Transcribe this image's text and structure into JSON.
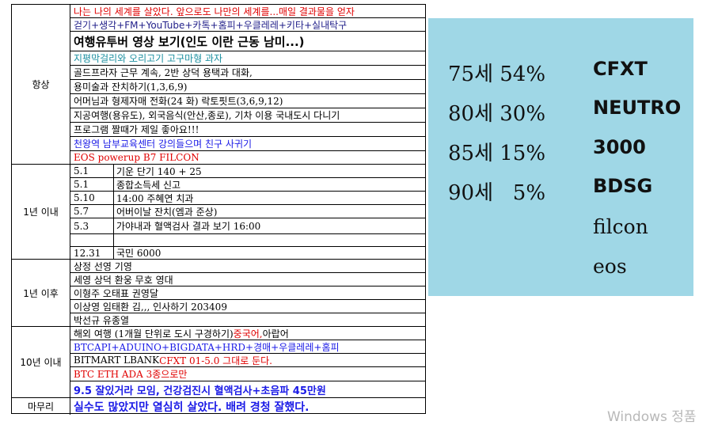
{
  "sections": [
    {
      "label": "항상"
    },
    {
      "label": "1년 이내"
    },
    {
      "label": "1년 이후"
    },
    {
      "label": "10년 이내"
    },
    {
      "label": "마무리"
    }
  ],
  "always": [
    "나는 나의 세계를 살았다. 앞으로도 나만의 세계를...매일 결과물을 얻자",
    "걷기+생각+FM+YouTube+카톡+홈피+우클레레+키타+실내탁구",
    "여행유투버 영상 보기(인도 이란 근동 남미...)",
    "지평막걸리와 오리고기 고구마형 과자",
    "골드프라자 근무 계속, 2반 상덕 용택과 대화,",
    "용미술과 잔치하기(1,3,6,9)",
    "어머님과 형제자매 전화(24 화) 락토핏트(3,6,9,12)",
    "지공여행(용유도), 외국음식(안산,종로), 기차 이용 국내도시 다니기",
    "프로그램 짤때가 제일 좋아요!!!",
    "천왕역 남부교육센터 강의들으며 친구 사귀기",
    "EOS powerup B7 FILCON"
  ],
  "within1": [
    {
      "date": "5.1",
      "text": "기운 단기 140 + 25"
    },
    {
      "date": "5.1",
      "text": "종합소득세 신고"
    },
    {
      "date": "5.10",
      "text": "14:00 주혜연 치과"
    },
    {
      "date": "5.7",
      "text": "어버이날 잔치(엠과 준상)"
    },
    {
      "date": "5.3",
      "text": "가야내과 혈액검사 결과 보기 16:00"
    },
    {
      "date": "",
      "text": ""
    },
    {
      "date": "12.31",
      "text": "국민 6000"
    }
  ],
  "after1": [
    "상정 선영 기영",
    "세영 상덕  환웅 무호 영대",
    "이형주 오태표 권영달",
    "이상영 임태환 김,,, 인사하기 203409",
    "박선규 유종열"
  ],
  "within10": {
    "travel_a": "해외 여행 (1개월 단위로 도시 구경하기) ",
    "travel_b": "중국어,",
    "travel_c": "아랍어",
    "tech": "BTCAPI+ADUINO+BIGDATA+HRD+경매+우클레레+홈피",
    "bit_a": "BITMART LBANK ",
    "bit_b": "CFXT 01-5.0 그대로 둔다.",
    "coins": "BTC ETH ADA 3종으로만",
    "meet": "9.5 잘있거라 모임, 건강검진시 혈액검사+초음파 45만원"
  },
  "closing": "실수도 많았지만 열심히 살았다. 배려 경청 잘했다.",
  "panel": {
    "odds": [
      "75세 54%",
      "80세 30%",
      "85세 15%",
      "90세   5%"
    ],
    "tickers": [
      "CFXT",
      "NEUTRO",
      "3000",
      "BDSG",
      "filcon",
      "eos"
    ],
    "bg": "#9fd7e6"
  },
  "watermark": "Windows 정품"
}
